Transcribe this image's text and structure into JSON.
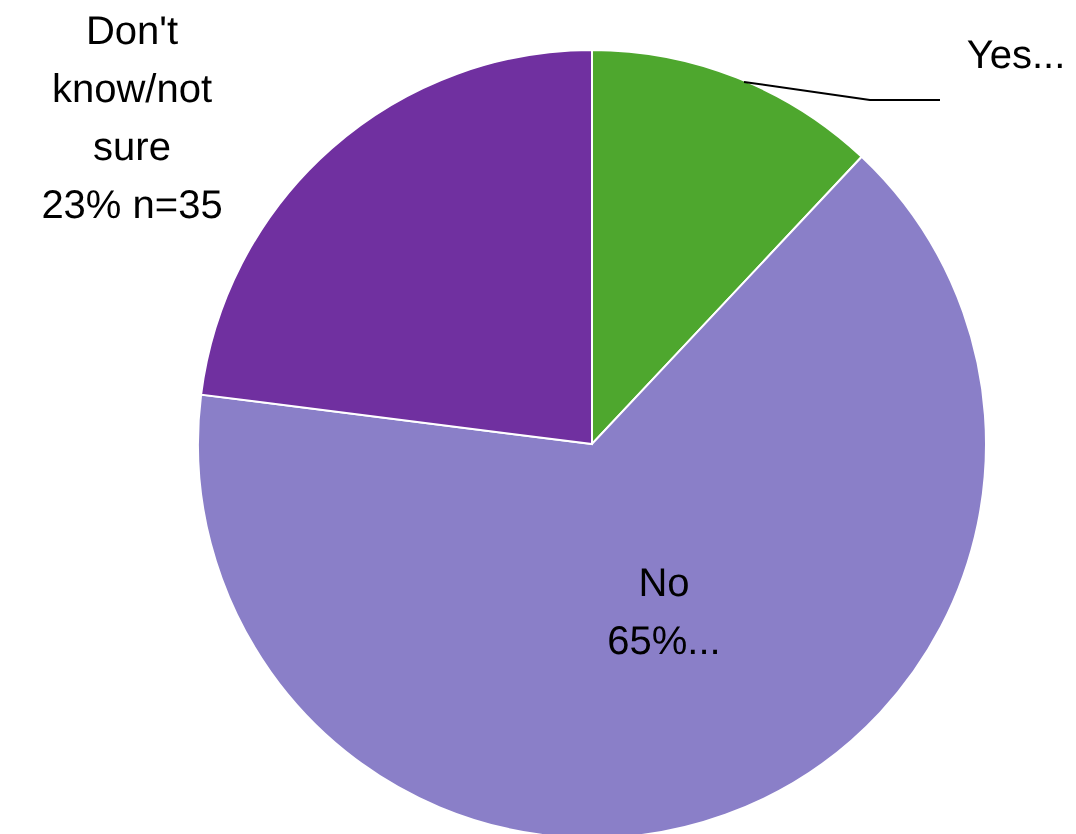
{
  "chart_data": {
    "type": "pie",
    "categories": [
      "Yes...",
      "No",
      "Don't know/not sure"
    ],
    "values": [
      12,
      65,
      23
    ],
    "colors": [
      "#4ea72e",
      "#8a7fc8",
      "#7030a0"
    ],
    "value_labels": [
      null,
      "65%...",
      "23% n=35"
    ]
  }
}
